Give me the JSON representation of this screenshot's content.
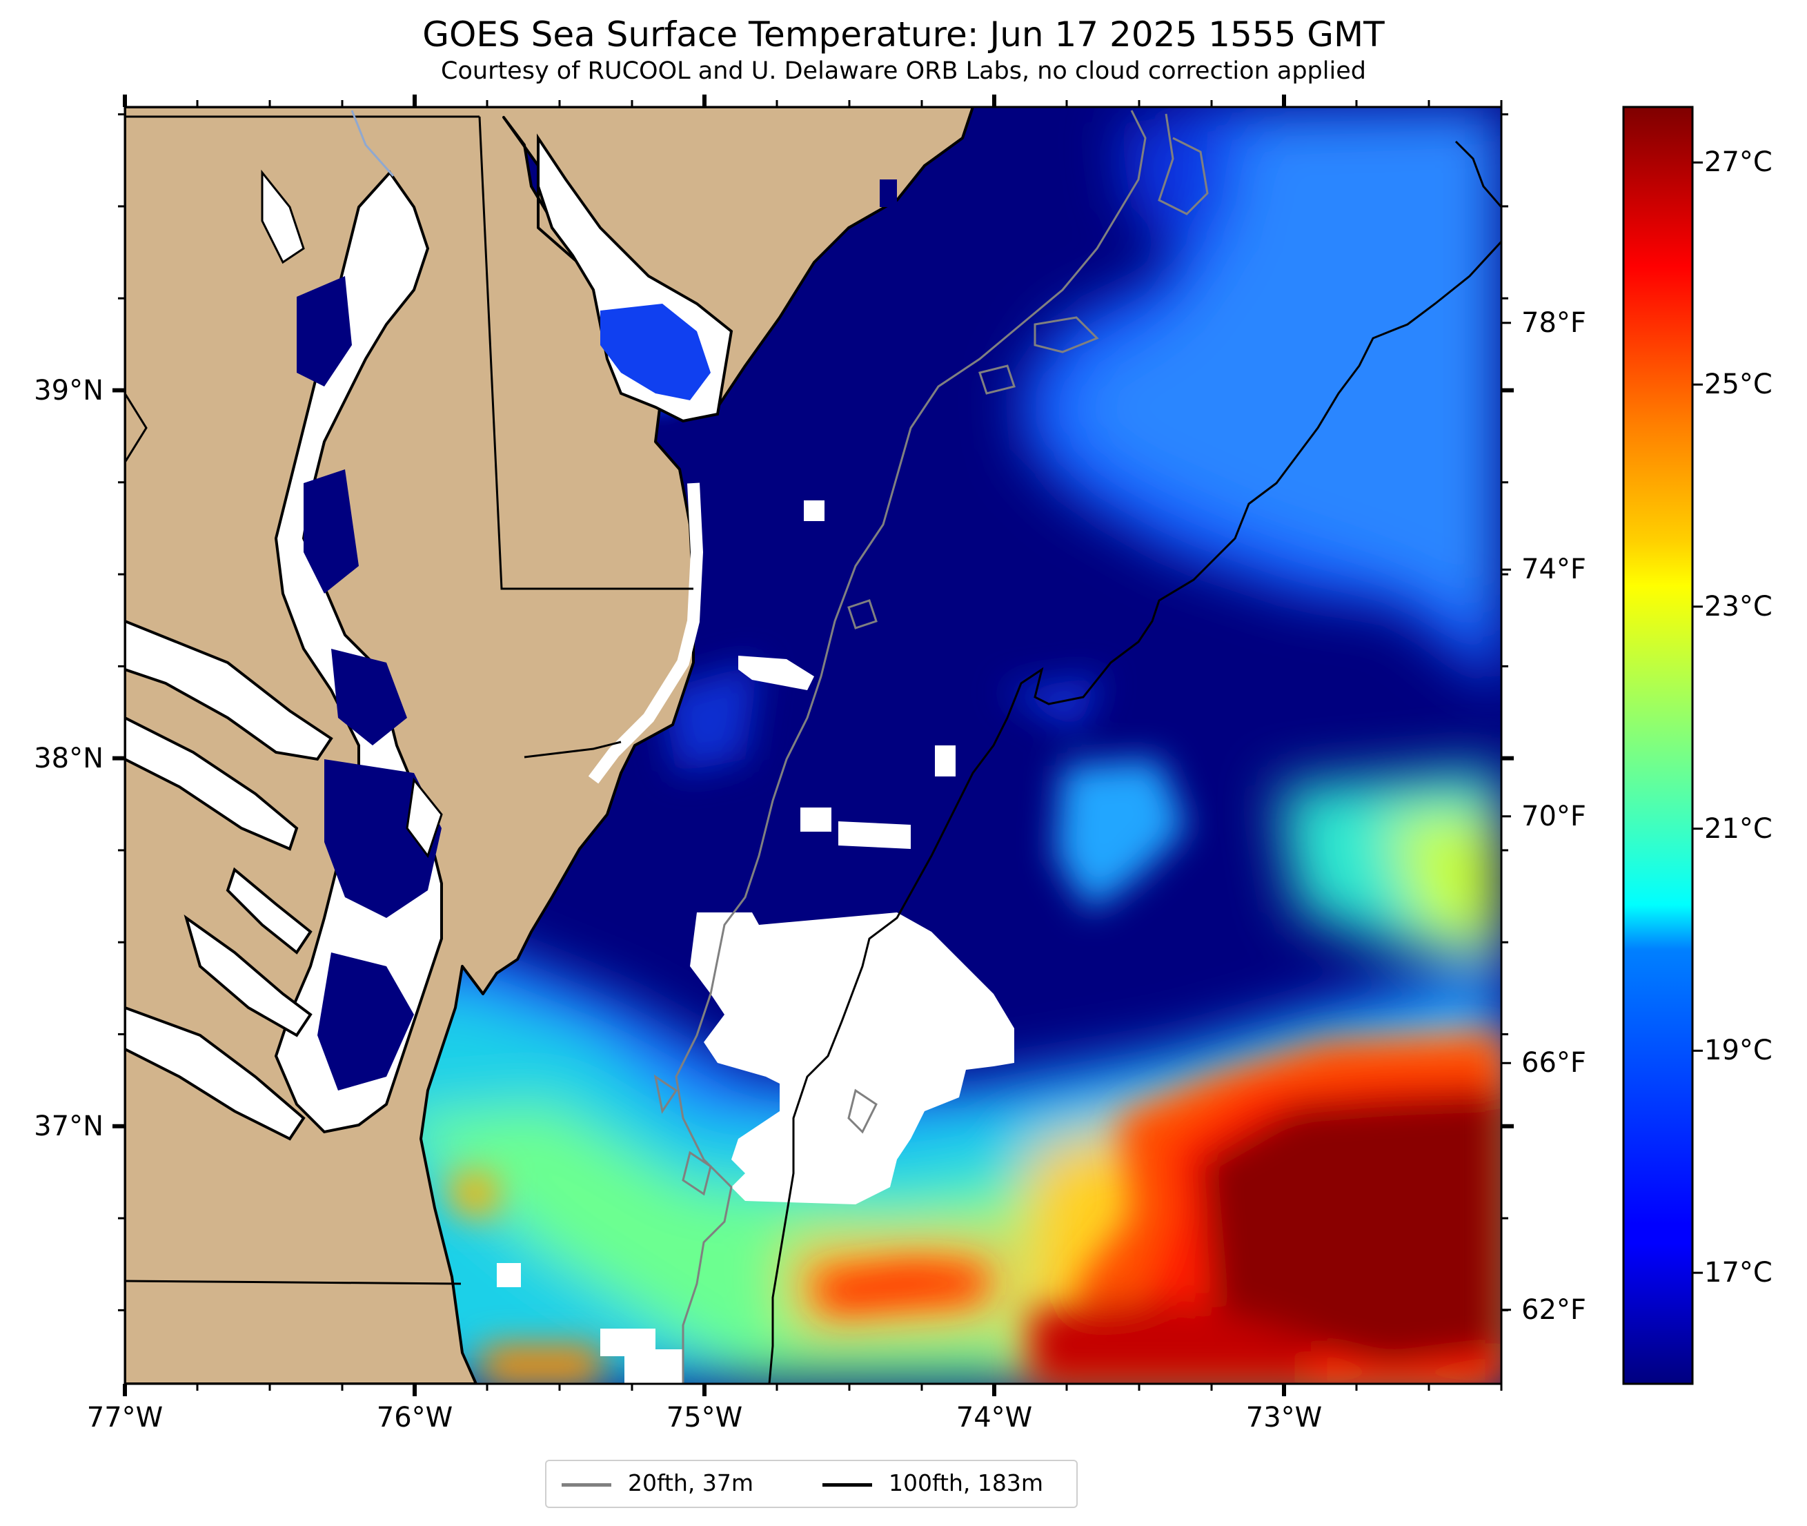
{
  "header": {
    "title": "GOES Sea Surface Temperature: Jun 17 2025 1555 GMT",
    "subtitle": "Courtesy of RUCOOL and U. Delaware ORB Labs, no cloud correction applied"
  },
  "map": {
    "lon_range": [
      -77.0,
      -72.25
    ],
    "lat_range": [
      36.3,
      39.77
    ],
    "colors": {
      "land": "#D2B48C",
      "coastline": "#000000",
      "no_data": "#FFFFFF",
      "isobath_20fth": "#808080",
      "isobath_100fth": "#000000"
    },
    "x_ticks": [
      {
        "value": -77,
        "label": "77°W"
      },
      {
        "value": -76,
        "label": "76°W"
      },
      {
        "value": -75,
        "label": "75°W"
      },
      {
        "value": -74,
        "label": "74°W"
      },
      {
        "value": -73,
        "label": "73°W"
      }
    ],
    "y_ticks": [
      {
        "value": 39,
        "label": "39°N"
      },
      {
        "value": 38,
        "label": "38°N"
      },
      {
        "value": 37,
        "label": "37°N"
      }
    ]
  },
  "colorbar": {
    "colormap": "jet",
    "range_c": [
      16.0,
      27.5
    ],
    "celsius_ticks": [
      {
        "value": 17,
        "label": "17°C"
      },
      {
        "value": 19,
        "label": "19°C"
      },
      {
        "value": 21,
        "label": "21°C"
      },
      {
        "value": 23,
        "label": "23°C"
      },
      {
        "value": 25,
        "label": "25°C"
      },
      {
        "value": 27,
        "label": "27°C"
      }
    ],
    "fahrenheit_ticks": [
      {
        "value": 62,
        "label": "62°F"
      },
      {
        "value": 66,
        "label": "66°F"
      },
      {
        "value": 70,
        "label": "70°F"
      },
      {
        "value": 74,
        "label": "74°F"
      },
      {
        "value": 78,
        "label": "78°F"
      }
    ]
  },
  "legend": {
    "items": [
      {
        "label": "20fth, 37m",
        "color": "#808080"
      },
      {
        "label": "100fth, 183m",
        "color": "#000000"
      }
    ]
  }
}
